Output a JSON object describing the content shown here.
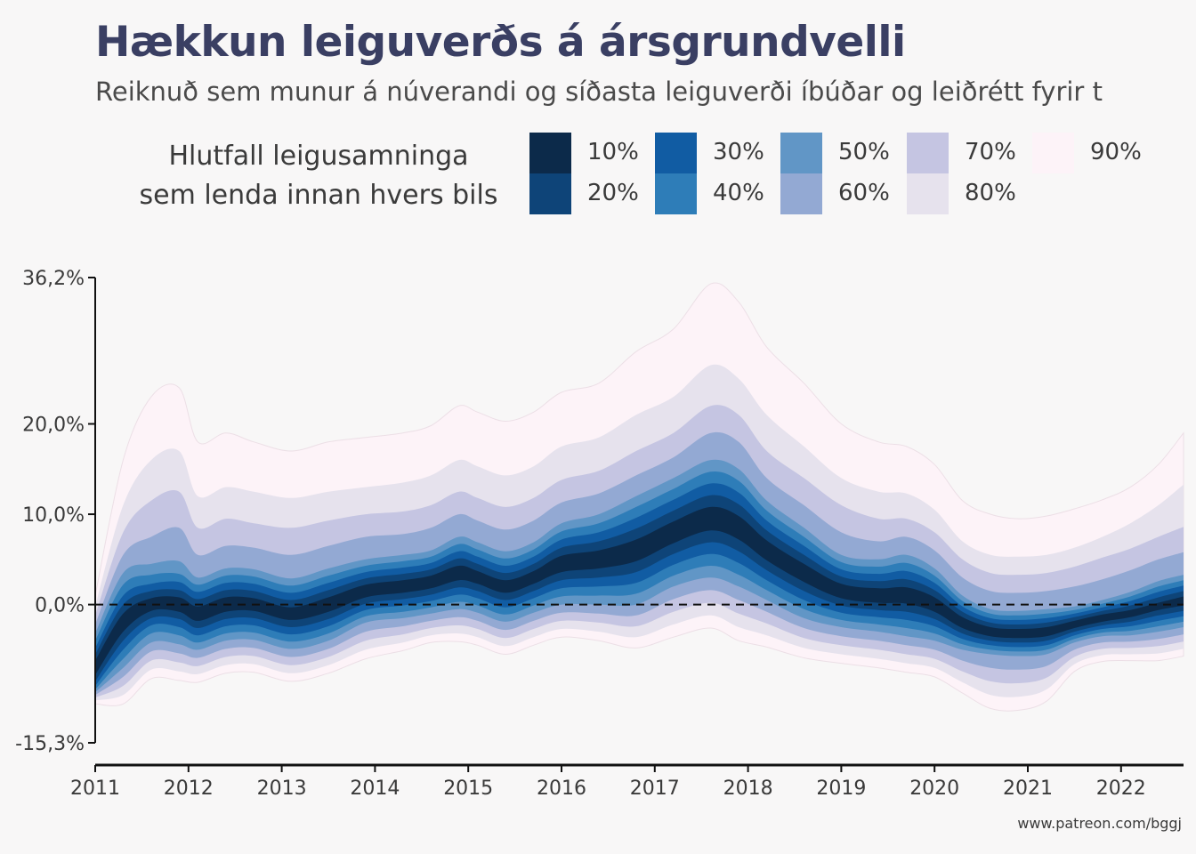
{
  "title": "Hækkun leiguverðs á ársgrundvelli",
  "subtitle": "Reiknuð sem munur á núverandi og síðasta leiguverði íbúðar og leiðrétt fyrir t",
  "legend": {
    "title_line1": "Hlutfall leigusamninga",
    "title_line2": "sem lenda innan hvers bils",
    "items": [
      {
        "label": "10%",
        "color": "#0c2a4a"
      },
      {
        "label": "20%",
        "color": "#0e4478"
      },
      {
        "label": "30%",
        "color": "#115ca3"
      },
      {
        "label": "40%",
        "color": "#2e7db8"
      },
      {
        "label": "50%",
        "color": "#6196c6"
      },
      {
        "label": "60%",
        "color": "#93a9d3"
      },
      {
        "label": "70%",
        "color": "#c5c5e2"
      },
      {
        "label": "80%",
        "color": "#e6e2ed"
      },
      {
        "label": "90%",
        "color": "#fdf3f8"
      }
    ]
  },
  "caption": "www.patreon.com/bggj",
  "chart_data": {
    "type": "area",
    "description_note": "",
    "x": [
      2011.0,
      2011.3,
      2011.6,
      2011.9,
      2012.1,
      2012.4,
      2012.7,
      2013.1,
      2013.5,
      2013.9,
      2014.3,
      2014.6,
      2014.9,
      2015.1,
      2015.4,
      2015.7,
      2016.0,
      2016.4,
      2016.8,
      2017.2,
      2017.6,
      2017.9,
      2018.2,
      2018.6,
      2019.0,
      2019.4,
      2019.7,
      2020.0,
      2020.3,
      2020.6,
      2020.9,
      2021.2,
      2021.5,
      2021.8,
      2022.1,
      2022.4,
      2022.67
    ],
    "median": [
      -7,
      -2,
      0,
      0,
      -1,
      0,
      0,
      -1,
      0,
      1.5,
      2,
      2.5,
      3.5,
      3,
      2,
      3,
      4.5,
      5,
      6,
      8,
      9.5,
      8.5,
      6,
      3.5,
      1.5,
      1,
      1,
      0,
      -2,
      -3,
      -3.2,
      -3,
      -2.2,
      -1.5,
      -1,
      -0.2,
      0.4
    ],
    "bands": [
      {
        "name": "10%",
        "lower": [
          -7.8,
          -3.0,
          -0.7,
          -0.8,
          -1.8,
          -0.8,
          -0.7,
          -1.7,
          -0.8,
          0.8,
          1.3,
          1.8,
          2.7,
          2.3,
          1.3,
          2.3,
          3.6,
          4.0,
          4.8,
          6.8,
          8.2,
          7.2,
          4.9,
          2.5,
          0.7,
          0.2,
          0.1,
          -0.8,
          -2.6,
          -3.5,
          -3.7,
          -3.5,
          -2.6,
          -1.9,
          -1.4,
          -0.6,
          -0.1
        ],
        "upper": [
          -6.2,
          -1.0,
          0.7,
          0.8,
          -0.2,
          0.8,
          0.7,
          -0.3,
          0.8,
          2.2,
          2.7,
          3.2,
          4.3,
          3.7,
          2.7,
          3.7,
          5.4,
          6.0,
          7.2,
          9.2,
          10.8,
          9.8,
          7.1,
          4.5,
          2.3,
          1.8,
          1.9,
          0.8,
          -1.4,
          -2.5,
          -2.7,
          -2.5,
          -1.8,
          -1.1,
          -0.6,
          0.2,
          0.9
        ]
      },
      {
        "name": "20%",
        "lower": [
          -8.5,
          -4.0,
          -1.5,
          -1.6,
          -2.6,
          -1.6,
          -1.5,
          -2.5,
          -1.6,
          0.1,
          0.6,
          1.1,
          1.9,
          1.5,
          0.5,
          1.5,
          2.7,
          3.0,
          3.6,
          5.6,
          6.9,
          5.9,
          3.8,
          1.5,
          -0.1,
          -0.6,
          -0.8,
          -1.6,
          -3.2,
          -4.0,
          -4.2,
          -4.0,
          -3.0,
          -2.3,
          -1.9,
          -1.2,
          -0.7
        ],
        "upper": [
          -5.5,
          0.0,
          1.5,
          1.6,
          0.6,
          1.6,
          1.5,
          0.5,
          1.6,
          2.9,
          3.4,
          3.9,
          5.1,
          4.5,
          3.5,
          4.5,
          6.3,
          7.0,
          8.4,
          10.4,
          12.1,
          11.1,
          8.2,
          5.5,
          3.1,
          2.6,
          2.8,
          1.6,
          -0.8,
          -2.0,
          -2.2,
          -2.0,
          -1.4,
          -0.7,
          -0.1,
          0.8,
          1.5
        ]
      },
      {
        "name": "30%",
        "lower": [
          -9.0,
          -5.0,
          -2.3,
          -2.5,
          -3.4,
          -2.4,
          -2.3,
          -3.3,
          -2.4,
          -0.6,
          -0.1,
          0.4,
          1.1,
          0.7,
          -0.3,
          0.7,
          1.8,
          2.0,
          2.4,
          4.4,
          5.6,
          4.6,
          2.7,
          0.5,
          -0.9,
          -1.4,
          -1.7,
          -2.4,
          -3.8,
          -4.5,
          -4.7,
          -4.5,
          -3.4,
          -2.7,
          -2.4,
          -1.8,
          -1.3
        ],
        "upper": [
          -4.8,
          1.0,
          2.3,
          2.5,
          1.4,
          2.4,
          2.3,
          1.3,
          2.4,
          3.6,
          4.1,
          4.6,
          5.9,
          5.3,
          4.3,
          5.3,
          7.2,
          8.0,
          9.6,
          11.6,
          13.4,
          12.4,
          9.3,
          6.5,
          3.9,
          3.4,
          3.7,
          2.4,
          -0.2,
          -1.5,
          -1.7,
          -1.5,
          -1.0,
          -0.3,
          0.4,
          1.4,
          2.1
        ]
      },
      {
        "name": "40%",
        "lower": [
          -9.4,
          -6.0,
          -3.2,
          -3.4,
          -4.2,
          -3.2,
          -3.1,
          -4.1,
          -3.2,
          -1.3,
          -0.8,
          -0.3,
          0.3,
          -0.1,
          -1.1,
          -0.1,
          0.9,
          1.0,
          1.2,
          3.2,
          4.3,
          3.3,
          1.6,
          -0.5,
          -1.7,
          -2.2,
          -2.6,
          -3.2,
          -4.4,
          -5.0,
          -5.2,
          -5.0,
          -3.8,
          -3.1,
          -2.9,
          -2.4,
          -1.9
        ],
        "upper": [
          -4.0,
          2.2,
          3.3,
          3.4,
          2.2,
          3.2,
          3.1,
          2.1,
          3.2,
          4.3,
          4.8,
          5.3,
          6.7,
          6.1,
          5.1,
          6.1,
          8.1,
          9.0,
          10.8,
          12.8,
          14.7,
          13.7,
          10.4,
          7.5,
          4.7,
          4.2,
          4.6,
          3.2,
          0.4,
          -1.0,
          -1.2,
          -1.0,
          -0.6,
          0.1,
          0.9,
          2.0,
          2.7
        ]
      },
      {
        "name": "50%",
        "lower": [
          -9.7,
          -7.0,
          -4.2,
          -4.4,
          -5.0,
          -4.0,
          -3.9,
          -4.9,
          -4.0,
          -2.0,
          -1.5,
          -1.0,
          -0.5,
          -0.9,
          -1.9,
          -0.9,
          0.0,
          0.0,
          0.0,
          2.0,
          3.0,
          2.0,
          0.5,
          -1.5,
          -2.5,
          -3.0,
          -3.5,
          -4.0,
          -5.0,
          -5.5,
          -5.7,
          -5.5,
          -4.2,
          -3.5,
          -3.4,
          -3.0,
          -2.5
        ],
        "upper": [
          -3.2,
          3.5,
          4.5,
          4.8,
          3.0,
          4.0,
          3.9,
          2.9,
          4.0,
          5.0,
          5.5,
          6.0,
          7.5,
          6.9,
          5.9,
          6.9,
          9.0,
          10.0,
          12.0,
          14.0,
          16.0,
          15.0,
          11.5,
          8.5,
          5.5,
          5.0,
          5.5,
          4.0,
          1.0,
          -0.5,
          -0.7,
          -0.5,
          -0.2,
          0.5,
          1.4,
          2.6,
          3.3
        ]
      },
      {
        "name": "60%",
        "lower": [
          -10.0,
          -8.0,
          -5.2,
          -5.4,
          -5.9,
          -4.9,
          -4.8,
          -5.8,
          -4.9,
          -3.0,
          -2.4,
          -1.8,
          -1.4,
          -1.8,
          -2.8,
          -1.8,
          -0.9,
          -1.0,
          -1.2,
          0.6,
          1.6,
          0.5,
          -0.8,
          -2.6,
          -3.5,
          -4.0,
          -4.5,
          -5.0,
          -6.2,
          -7.0,
          -7.2,
          -6.8,
          -5.0,
          -4.2,
          -4.1,
          -3.8,
          -3.3
        ],
        "upper": [
          -2.2,
          5.5,
          7.5,
          8.5,
          5.5,
          6.5,
          6.3,
          5.5,
          6.5,
          7.5,
          7.8,
          8.5,
          10.0,
          9.3,
          8.3,
          9.3,
          11.3,
          12.3,
          14.3,
          16.3,
          19.0,
          18.0,
          14.0,
          11.0,
          8.0,
          7.0,
          7.5,
          6.0,
          3.0,
          1.5,
          1.3,
          1.5,
          2.0,
          2.8,
          3.8,
          5.0,
          5.8
        ]
      },
      {
        "name": "70%",
        "lower": [
          -10.3,
          -9.0,
          -6.2,
          -6.4,
          -6.8,
          -5.8,
          -5.7,
          -6.7,
          -5.8,
          -4.0,
          -3.3,
          -2.6,
          -2.3,
          -2.7,
          -3.7,
          -2.7,
          -1.8,
          -2.0,
          -2.4,
          -0.8,
          0.2,
          -1.0,
          -2.1,
          -3.7,
          -4.5,
          -5.0,
          -5.5,
          -6.0,
          -7.4,
          -8.5,
          -8.7,
          -8.1,
          -5.8,
          -4.9,
          -4.8,
          -4.6,
          -4.1
        ],
        "upper": [
          -1.2,
          8.0,
          11.5,
          12.5,
          8.5,
          9.5,
          9.0,
          8.5,
          9.3,
          10.0,
          10.3,
          11.0,
          12.5,
          11.8,
          10.8,
          11.8,
          13.8,
          14.8,
          17.0,
          19.0,
          22.0,
          21.0,
          17.0,
          14.0,
          11.0,
          9.5,
          9.5,
          8.0,
          5.0,
          3.5,
          3.3,
          3.5,
          4.2,
          5.2,
          6.2,
          7.5,
          8.6
        ]
      },
      {
        "name": "80%",
        "lower": [
          -10.6,
          -10.0,
          -7.2,
          -7.4,
          -7.7,
          -6.7,
          -6.6,
          -7.6,
          -6.7,
          -5.0,
          -4.2,
          -3.4,
          -3.2,
          -3.6,
          -4.6,
          -3.6,
          -2.7,
          -3.0,
          -3.6,
          -2.2,
          -1.2,
          -2.5,
          -3.4,
          -4.8,
          -5.5,
          -6.0,
          -6.5,
          -7.0,
          -8.6,
          -10.0,
          -10.2,
          -9.4,
          -6.6,
          -5.6,
          -5.5,
          -5.4,
          -4.9
        ],
        "upper": [
          -0.2,
          11.0,
          16.0,
          17.0,
          12.0,
          13.0,
          12.5,
          11.8,
          12.5,
          13.0,
          13.5,
          14.3,
          16.0,
          15.3,
          14.3,
          15.3,
          17.5,
          18.5,
          21.0,
          23.0,
          26.5,
          25.0,
          21.0,
          17.5,
          14.0,
          12.5,
          12.3,
          10.5,
          7.0,
          5.5,
          5.3,
          5.5,
          6.3,
          7.5,
          9.0,
          11.0,
          13.3
        ]
      },
      {
        "name": "90%",
        "lower": [
          -11.0,
          -11.0,
          -8.2,
          -8.4,
          -8.6,
          -7.6,
          -7.5,
          -8.5,
          -7.6,
          -6.0,
          -5.1,
          -4.2,
          -4.1,
          -4.5,
          -5.5,
          -4.5,
          -3.6,
          -4.0,
          -4.8,
          -3.6,
          -2.6,
          -4.0,
          -4.7,
          -5.9,
          -6.5,
          -7.0,
          -7.5,
          -8.0,
          -9.8,
          -11.5,
          -11.7,
          -10.7,
          -7.4,
          -6.3,
          -6.2,
          -6.2,
          -5.7
        ],
        "upper": [
          1.0,
          16.0,
          23.0,
          24.0,
          18.0,
          19.0,
          18.0,
          17.0,
          18.0,
          18.5,
          19.0,
          19.8,
          22.0,
          21.3,
          20.3,
          21.3,
          23.5,
          24.5,
          28.0,
          30.5,
          35.5,
          33.5,
          28.5,
          24.5,
          20.0,
          18.0,
          17.5,
          15.5,
          11.5,
          10.0,
          9.5,
          9.8,
          10.6,
          11.6,
          13.0,
          15.5,
          19.0
        ]
      }
    ],
    "xlabel": "",
    "ylabel": "",
    "y_ticks": [
      "36,2%",
      "20,0%",
      "10,0%",
      "0,0%",
      "-15,3%"
    ],
    "y_tick_values": [
      36.2,
      20.0,
      10.0,
      0.0,
      -15.3
    ],
    "x_ticks": [
      "2011",
      "2012",
      "2013",
      "2014",
      "2015",
      "2016",
      "2017",
      "2018",
      "2019",
      "2020",
      "2021",
      "2022"
    ],
    "x_tick_values": [
      2011,
      2012,
      2013,
      2014,
      2015,
      2016,
      2017,
      2018,
      2019,
      2020,
      2021,
      2022
    ],
    "xlim": [
      2011,
      2022.67
    ],
    "ylim": [
      -15.3,
      36.2
    ],
    "reference_line": 0,
    "grid": false,
    "legend_position": "top"
  }
}
